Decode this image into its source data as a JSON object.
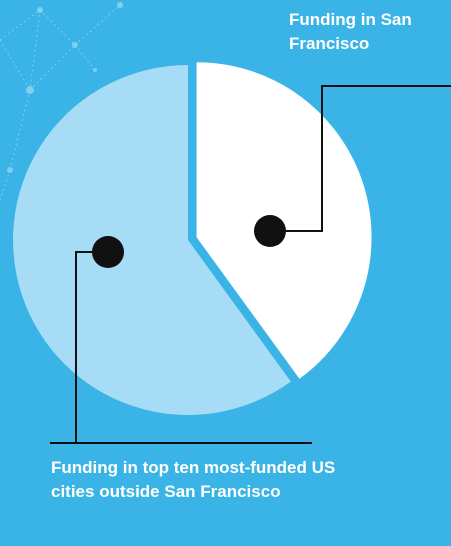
{
  "chart_data": {
    "type": "pie",
    "categories": [
      "Funding in San Francisco",
      "Funding in top ten most-funded US cities outside San Francisco"
    ],
    "values": [
      40,
      60
    ],
    "colors": [
      "#ffffff",
      "#a6dcf6"
    ]
  }
}
